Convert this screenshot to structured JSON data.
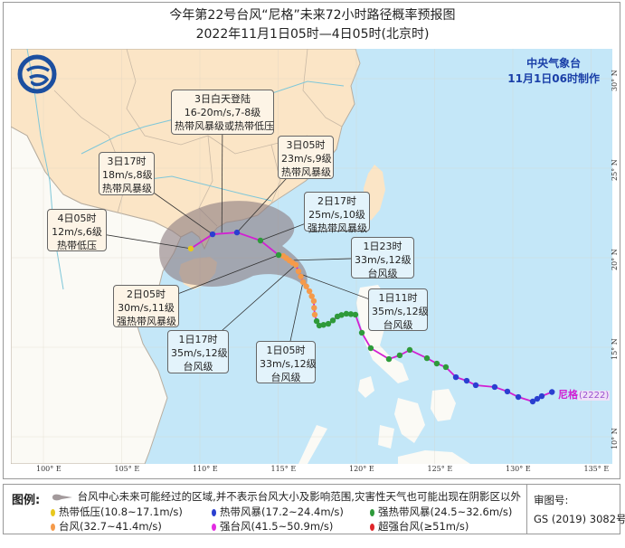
{
  "title": "今年第22号台风“尼格”未来72小时路径概率预报图",
  "subtitle": "2022年11月1日05时—4日05时(北京时)",
  "agency": {
    "name": "中央气象台",
    "issued": "11月1日06时制作"
  },
  "logo": "cma-logo",
  "typhoon_label": {
    "name": "尼格",
    "code": "(2222)"
  },
  "colors": {
    "land_china": "#fbe5c6",
    "land_other": "#fbfaf5",
    "sea": "#c4e7f8",
    "track_line": "#d21fd2",
    "cone": "#8c7c80",
    "td": "#e8c81e",
    "ts": "#2a3fd0",
    "sts": "#2e9a3a",
    "ty": "#f59a4a",
    "sty": "#e22be2",
    "superty": "#e0262a"
  },
  "axes": {
    "lon_labels": [
      "100° E",
      "105° E",
      "110° E",
      "115° E",
      "120° E",
      "125° E",
      "130° E",
      "135° E"
    ],
    "lon_values": [
      100,
      105,
      110,
      115,
      120,
      125,
      130,
      135
    ],
    "lat_labels": [
      "30° N",
      "25° N",
      "20° N",
      "15° N",
      "10° N"
    ],
    "lat_values": [
      30,
      25,
      20,
      15,
      10
    ]
  },
  "track": {
    "observed": [
      {
        "lon": 132.5,
        "lat": 12.5,
        "cat": "ts"
      },
      {
        "lon": 131.85,
        "lat": 12.27,
        "cat": "ts"
      },
      {
        "lon": 131.56,
        "lat": 12.12,
        "cat": "ts"
      },
      {
        "lon": 131.27,
        "lat": 11.97,
        "cat": "ts"
      },
      {
        "lon": 130.35,
        "lat": 12.22,
        "cat": "ts"
      },
      {
        "lon": 129.65,
        "lat": 12.53,
        "cat": "ts"
      },
      {
        "lon": 128.84,
        "lat": 12.78,
        "cat": "ts"
      },
      {
        "lon": 127.63,
        "lat": 12.88,
        "cat": "ts"
      },
      {
        "lon": 127.05,
        "lat": 13.13,
        "cat": "ts"
      },
      {
        "lon": 126.36,
        "lat": 13.33,
        "cat": "ts"
      },
      {
        "lon": 125.72,
        "lat": 13.89,
        "cat": "sts"
      },
      {
        "lon": 125.14,
        "lat": 14.09,
        "cat": "sts"
      },
      {
        "lon": 124.51,
        "lat": 14.39,
        "cat": "sts"
      },
      {
        "lon": 123.41,
        "lat": 14.85,
        "cat": "sts"
      },
      {
        "lon": 122.77,
        "lat": 14.55,
        "cat": "sts"
      },
      {
        "lon": 122.08,
        "lat": 14.34,
        "cat": "sts"
      },
      {
        "lon": 120.92,
        "lat": 14.95,
        "cat": "sts"
      },
      {
        "lon": 120.35,
        "lat": 15.81,
        "cat": "sts"
      },
      {
        "lon": 119.94,
        "lat": 16.82,
        "cat": "sts"
      },
      {
        "lon": 119.65,
        "lat": 16.85,
        "cat": "sts"
      },
      {
        "lon": 119.36,
        "lat": 16.87,
        "cat": "sts"
      },
      {
        "lon": 119.05,
        "lat": 16.8,
        "cat": "sts"
      },
      {
        "lon": 118.79,
        "lat": 16.72,
        "cat": "sts"
      },
      {
        "lon": 118.5,
        "lat": 16.5,
        "cat": "sts"
      },
      {
        "lon": 118.21,
        "lat": 16.31,
        "cat": "sts"
      },
      {
        "lon": 117.9,
        "lat": 16.25,
        "cat": "sts"
      },
      {
        "lon": 117.63,
        "lat": 16.21,
        "cat": "sts"
      },
      {
        "lon": 117.46,
        "lat": 16.46,
        "cat": "sts"
      },
      {
        "lon": 117.34,
        "lat": 16.82,
        "cat": "ty"
      },
      {
        "lon": 117.3,
        "lat": 17.2,
        "cat": "ty"
      },
      {
        "lon": 117.28,
        "lat": 17.58,
        "cat": "ty"
      },
      {
        "lon": 117.15,
        "lat": 17.85,
        "cat": "ty"
      },
      {
        "lon": 117.0,
        "lat": 18.13,
        "cat": "ty"
      },
      {
        "lon": 116.8,
        "lat": 18.4,
        "cat": "ty"
      },
      {
        "lon": 116.59,
        "lat": 18.64,
        "cat": "ty"
      },
      {
        "lon": 116.45,
        "lat": 18.95,
        "cat": "ty"
      },
      {
        "lon": 116.3,
        "lat": 19.24,
        "cat": "ty"
      },
      {
        "lon": 116.13,
        "lat": 19.6,
        "cat": "ty"
      },
      {
        "lon": 115.92,
        "lat": 19.72,
        "cat": "ty"
      },
      {
        "lon": 115.72,
        "lat": 19.85,
        "cat": "ty"
      },
      {
        "lon": 115.52,
        "lat": 19.98,
        "cat": "ty"
      },
      {
        "lon": 115.32,
        "lat": 20.1,
        "cat": "ty"
      }
    ],
    "forecast": [
      {
        "lon": 115.03,
        "lat": 20.15,
        "cat": "sts"
      },
      {
        "lon": 113.87,
        "lat": 20.96,
        "cat": "sts"
      },
      {
        "lon": 112.37,
        "lat": 21.41,
        "cat": "ts"
      },
      {
        "lon": 110.81,
        "lat": 21.31,
        "cat": "ts"
      },
      {
        "lon": 109.42,
        "lat": 20.51,
        "cat": "td"
      }
    ]
  },
  "callouts": [
    {
      "id": "landfall",
      "lines": [
        "3日白天登陆",
        "16-20m/s,7-8级",
        "热带风暴级或热带低压"
      ],
      "lon": 111.4,
      "lat": 21.4
    },
    {
      "id": "d3h17",
      "lines": [
        "3日17时",
        "18m/s,8级",
        "热带风暴级"
      ],
      "lon": 110.81,
      "lat": 21.31
    },
    {
      "id": "d3h05",
      "lines": [
        "3日05时",
        "23m/s,9级",
        "热带风暴级"
      ],
      "lon": 112.37,
      "lat": 21.41
    },
    {
      "id": "d2h17",
      "lines": [
        "2日17时",
        "25m/s,10级",
        "强热带风暴级"
      ],
      "lon": 113.87,
      "lat": 20.96
    },
    {
      "id": "d4h05",
      "lines": [
        "4日05时",
        "12m/s,6级",
        "热带低压"
      ],
      "lon": 109.42,
      "lat": 20.51
    },
    {
      "id": "d1h23",
      "lines": [
        "1日23时",
        "33m/s,12级",
        "台风级"
      ],
      "lon": 115.72,
      "lat": 19.85
    },
    {
      "id": "d2h05",
      "lines": [
        "2日05时",
        "30m/s,11级",
        "强热带风暴级"
      ],
      "lon": 115.03,
      "lat": 20.15
    },
    {
      "id": "d1h11",
      "lines": [
        "1日11时",
        "35m/s,12级",
        "台风级"
      ],
      "lon": 116.4,
      "lat": 19.1
    },
    {
      "id": "d1h17",
      "lines": [
        "1日17时",
        "35m/s,12级",
        "台风级"
      ],
      "lon": 116.13,
      "lat": 19.6
    },
    {
      "id": "d1h05",
      "lines": [
        "1日05时",
        "33m/s,12级",
        "台风级"
      ],
      "lon": 116.59,
      "lat": 18.64
    }
  ],
  "legend": {
    "heading": "图例:",
    "cone_text": "台风中心未来可能经过的区域,并不表示台风大小及影响范围,灾害性天气也可能出现在阴影区以外",
    "categories": [
      {
        "key": "td",
        "label": "热带低压(10.8~17.1m/s)"
      },
      {
        "key": "ts",
        "label": "热带风暴(17.2~24.4m/s)"
      },
      {
        "key": "sts",
        "label": "强热带风暴(24.5~32.6m/s)"
      },
      {
        "key": "ty",
        "label": "台风(32.7~41.4m/s)"
      },
      {
        "key": "sty",
        "label": "强台风(41.5~50.9m/s)"
      },
      {
        "key": "superty",
        "label": "超强台风(≥51m/s)"
      }
    ],
    "review_label": "审图号:",
    "review_number": "GS (2019) 3082号"
  }
}
